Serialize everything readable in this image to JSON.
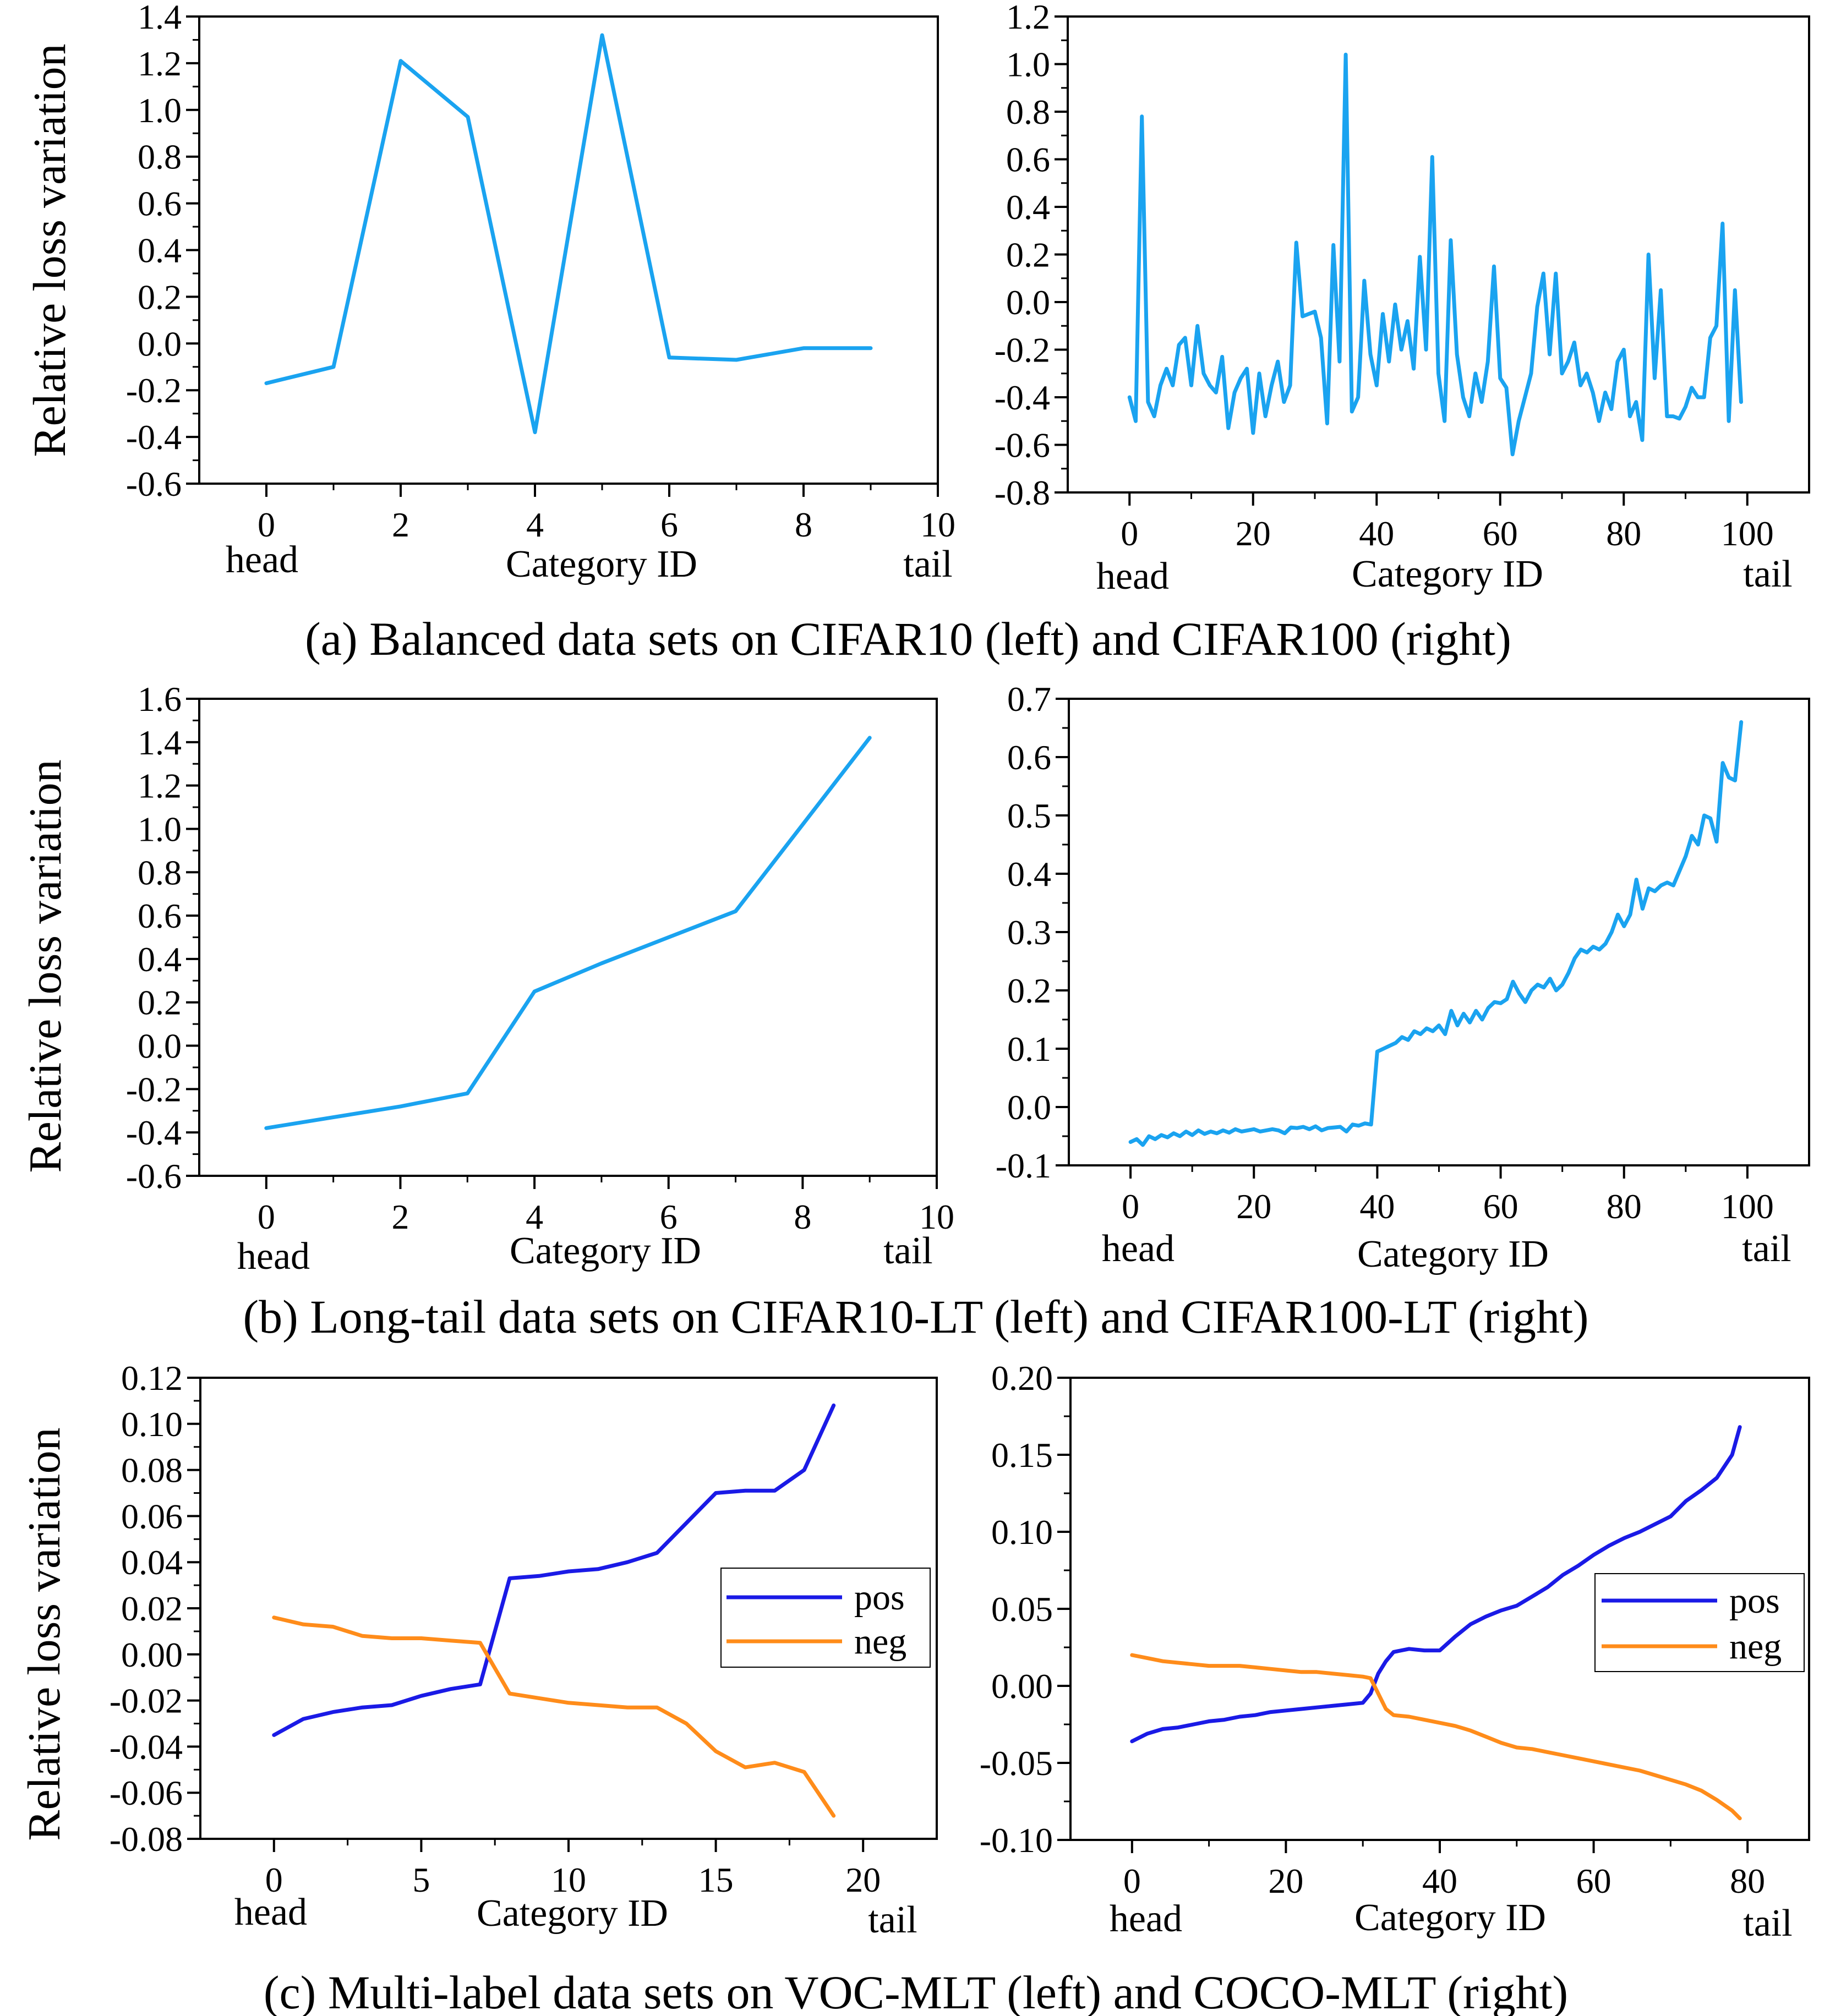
{
  "ylabel": "Relative loss variation",
  "xlabel": "Category ID",
  "head_label": "head",
  "tail_label": "tail",
  "captions": [
    "(a) Balanced data sets on CIFAR10 (left) and CIFAR100 (right)",
    "(b) Long-tail data sets on CIFAR10-LT (left) and CIFAR100-LT (right)",
    "(c) Multi-label data sets on VOC-MLT (left) and COCO-MLT (right)"
  ],
  "colors": {
    "series": "#1aa3f0",
    "pos": "#1a1ae6",
    "neg": "#ff8c1a",
    "axis": "#000000"
  },
  "chart_data": [
    {
      "id": "a-left",
      "type": "line",
      "title": "CIFAR10",
      "xlim": [
        -1,
        10
      ],
      "ylim": [
        -0.6,
        1.4
      ],
      "xticks": [
        0,
        2,
        4,
        6,
        8,
        10
      ],
      "xtick_labels": [
        "0",
        "2",
        "4",
        "6",
        "8",
        "10"
      ],
      "yticks": [
        -0.6,
        -0.4,
        -0.2,
        0.0,
        0.2,
        0.4,
        0.6,
        0.8,
        1.0,
        1.2,
        1.4
      ],
      "ytick_labels": [
        "-0.6",
        "-0.4",
        "-0.2",
        "0.0",
        "0.2",
        "0.4",
        "0.6",
        "0.8",
        "1.0",
        "1.2",
        "1.4"
      ],
      "series": [
        {
          "name": "loss",
          "color": "#1aa3f0",
          "x": [
            0,
            1,
            2,
            3,
            4,
            5,
            6,
            7,
            8,
            9
          ],
          "y": [
            -0.17,
            -0.1,
            1.21,
            0.97,
            -0.38,
            1.32,
            -0.06,
            -0.07,
            -0.02,
            -0.02
          ]
        }
      ]
    },
    {
      "id": "a-right",
      "type": "line",
      "title": "CIFAR100",
      "xlim": [
        -10,
        110
      ],
      "ylim": [
        -0.8,
        1.2
      ],
      "xticks": [
        0,
        20,
        40,
        60,
        80,
        100
      ],
      "xtick_labels": [
        "0",
        "20",
        "40",
        "60",
        "80",
        "100"
      ],
      "yticks": [
        -0.8,
        -0.6,
        -0.4,
        -0.2,
        0.0,
        0.2,
        0.4,
        0.6,
        0.8,
        1.0,
        1.2
      ],
      "ytick_labels": [
        "-0.8",
        "-0.6",
        "-0.4",
        "-0.2",
        "0.0",
        "0.2",
        "0.4",
        "0.6",
        "0.8",
        "1.0",
        "1.2"
      ],
      "series": [
        {
          "name": "loss",
          "color": "#1aa3f0",
          "x": [
            0,
            1,
            2,
            3,
            4,
            5,
            6,
            7,
            8,
            9,
            10,
            11,
            12,
            13,
            14,
            15,
            16,
            17,
            18,
            19,
            20,
            21,
            22,
            23,
            24,
            25,
            26,
            27,
            28,
            29,
            30,
            31,
            32,
            33,
            34,
            35,
            36,
            37,
            38,
            39,
            40,
            41,
            42,
            43,
            44,
            45,
            46,
            47,
            48,
            49,
            50,
            51,
            52,
            53,
            54,
            55,
            56,
            57,
            58,
            59,
            60,
            61,
            62,
            63,
            64,
            65,
            66,
            67,
            68,
            69,
            70,
            71,
            72,
            73,
            74,
            75,
            76,
            77,
            78,
            79,
            80,
            81,
            82,
            83,
            84,
            85,
            86,
            87,
            88,
            89,
            90,
            91,
            92,
            93,
            94,
            95,
            96,
            97,
            98,
            99
          ],
          "y": [
            -0.4,
            -0.5,
            0.78,
            -0.42,
            -0.48,
            -0.35,
            -0.28,
            -0.35,
            -0.18,
            -0.15,
            -0.35,
            -0.1,
            -0.3,
            -0.35,
            -0.38,
            -0.23,
            -0.53,
            -0.38,
            -0.32,
            -0.28,
            -0.55,
            -0.3,
            -0.48,
            -0.35,
            -0.25,
            -0.42,
            -0.35,
            0.25,
            -0.06,
            -0.05,
            -0.04,
            -0.15,
            -0.51,
            0.24,
            -0.25,
            1.04,
            -0.46,
            -0.4,
            0.09,
            -0.22,
            -0.35,
            -0.05,
            -0.25,
            -0.01,
            -0.2,
            -0.08,
            -0.28,
            0.19,
            -0.2,
            0.61,
            -0.3,
            -0.5,
            0.26,
            -0.22,
            -0.4,
            -0.48,
            -0.3,
            -0.42,
            -0.25,
            0.15,
            -0.32,
            -0.36,
            -0.64,
            -0.5,
            -0.4,
            -0.3,
            -0.02,
            0.12,
            -0.22,
            0.12,
            -0.3,
            -0.25,
            -0.17,
            -0.35,
            -0.3,
            -0.38,
            -0.5,
            -0.38,
            -0.45,
            -0.25,
            -0.2,
            -0.48,
            -0.42,
            -0.58,
            0.2,
            -0.32,
            0.05,
            -0.48,
            -0.48,
            -0.49,
            -0.44,
            -0.36,
            -0.4,
            -0.4,
            -0.15,
            -0.1,
            0.33,
            -0.5,
            0.05,
            -0.42
          ]
        }
      ]
    },
    {
      "id": "b-left",
      "type": "line",
      "title": "CIFAR10-LT",
      "xlim": [
        -1,
        10
      ],
      "ylim": [
        -0.6,
        1.6
      ],
      "xticks": [
        0,
        2,
        4,
        6,
        8,
        10
      ],
      "xtick_labels": [
        "0",
        "2",
        "4",
        "6",
        "8",
        "10"
      ],
      "yticks": [
        -0.6,
        -0.4,
        -0.2,
        0.0,
        0.2,
        0.4,
        0.6,
        0.8,
        1.0,
        1.2,
        1.4,
        1.6
      ],
      "ytick_labels": [
        "-0.6",
        "-0.4",
        "-0.2",
        "0.0",
        "0.2",
        "0.4",
        "0.6",
        "0.8",
        "1.0",
        "1.2",
        "1.4",
        "1.6"
      ],
      "series": [
        {
          "name": "loss",
          "color": "#1aa3f0",
          "x": [
            0,
            1,
            2,
            3,
            4,
            5,
            6,
            7,
            8,
            9
          ],
          "y": [
            -0.38,
            -0.33,
            -0.28,
            -0.22,
            0.25,
            0.38,
            0.5,
            0.62,
            1.02,
            1.42
          ]
        }
      ]
    },
    {
      "id": "b-right",
      "type": "line",
      "title": "CIFAR100-LT",
      "xlim": [
        -10,
        110
      ],
      "ylim": [
        -0.1,
        0.7
      ],
      "xticks": [
        0,
        20,
        40,
        60,
        80,
        100
      ],
      "xtick_labels": [
        "0",
        "20",
        "40",
        "60",
        "80",
        "100"
      ],
      "yticks": [
        -0.1,
        0.0,
        0.1,
        0.2,
        0.3,
        0.4,
        0.5,
        0.6,
        0.7
      ],
      "ytick_labels": [
        "-0.1",
        "0.0",
        "0.1",
        "0.2",
        "0.3",
        "0.4",
        "0.5",
        "0.6",
        "0.7"
      ],
      "series": [
        {
          "name": "loss",
          "color": "#1aa3f0",
          "x": [
            0,
            1,
            2,
            3,
            4,
            5,
            6,
            7,
            8,
            9,
            10,
            11,
            12,
            13,
            14,
            15,
            16,
            17,
            18,
            19,
            20,
            21,
            22,
            23,
            24,
            25,
            26,
            27,
            28,
            29,
            30,
            31,
            32,
            33,
            34,
            35,
            36,
            37,
            38,
            39,
            40,
            41,
            42,
            43,
            44,
            45,
            46,
            47,
            48,
            49,
            50,
            51,
            52,
            53,
            54,
            55,
            56,
            57,
            58,
            59,
            60,
            61,
            62,
            63,
            64,
            65,
            66,
            67,
            68,
            69,
            70,
            71,
            72,
            73,
            74,
            75,
            76,
            77,
            78,
            79,
            80,
            81,
            82,
            83,
            84,
            85,
            86,
            87,
            88,
            89,
            90,
            91,
            92,
            93,
            94,
            95,
            96,
            97,
            98,
            99
          ],
          "y": [
            -0.06,
            -0.055,
            -0.065,
            -0.05,
            -0.055,
            -0.048,
            -0.052,
            -0.045,
            -0.05,
            -0.042,
            -0.048,
            -0.04,
            -0.046,
            -0.042,
            -0.045,
            -0.04,
            -0.044,
            -0.038,
            -0.042,
            -0.04,
            -0.038,
            -0.042,
            -0.04,
            -0.038,
            -0.04,
            -0.045,
            -0.035,
            -0.036,
            -0.034,
            -0.038,
            -0.033,
            -0.04,
            -0.036,
            -0.035,
            -0.034,
            -0.042,
            -0.03,
            -0.032,
            -0.028,
            -0.03,
            0.095,
            0.1,
            0.105,
            0.11,
            0.12,
            0.115,
            0.13,
            0.125,
            0.135,
            0.13,
            0.14,
            0.125,
            0.165,
            0.14,
            0.16,
            0.145,
            0.165,
            0.15,
            0.17,
            0.18,
            0.178,
            0.185,
            0.215,
            0.195,
            0.18,
            0.2,
            0.21,
            0.205,
            0.22,
            0.2,
            0.21,
            0.23,
            0.255,
            0.27,
            0.265,
            0.275,
            0.27,
            0.28,
            0.3,
            0.33,
            0.31,
            0.33,
            0.39,
            0.34,
            0.375,
            0.37,
            0.38,
            0.385,
            0.38,
            0.405,
            0.43,
            0.465,
            0.45,
            0.5,
            0.495,
            0.455,
            0.59,
            0.565,
            0.56,
            0.66
          ]
        }
      ]
    },
    {
      "id": "c-left",
      "type": "line",
      "title": "VOC-MLT",
      "xlim": [
        -2.5,
        22.5
      ],
      "ylim": [
        -0.08,
        0.12
      ],
      "xticks": [
        0,
        5,
        10,
        15,
        20
      ],
      "xtick_labels": [
        "0",
        "5",
        "10",
        "15",
        "20"
      ],
      "yticks": [
        -0.08,
        -0.06,
        -0.04,
        -0.02,
        0.0,
        0.02,
        0.04,
        0.06,
        0.08,
        0.1,
        0.12
      ],
      "ytick_labels": [
        "-0.08",
        "-0.06",
        "-0.04",
        "-0.02",
        "0.00",
        "0.02",
        "0.04",
        "0.06",
        "0.08",
        "0.10",
        "0.12"
      ],
      "legend": {
        "entries": [
          "pos",
          "neg"
        ],
        "placement": "center-right"
      },
      "series": [
        {
          "name": "pos",
          "color": "#1a1ae6",
          "x": [
            0,
            1,
            2,
            3,
            4,
            5,
            6,
            7,
            8,
            9,
            10,
            11,
            12,
            13,
            14,
            15,
            16,
            17,
            18,
            19
          ],
          "y": [
            -0.035,
            -0.028,
            -0.025,
            -0.023,
            -0.022,
            -0.018,
            -0.015,
            -0.013,
            0.033,
            0.034,
            0.036,
            0.037,
            0.04,
            0.044,
            0.057,
            0.07,
            0.071,
            0.071,
            0.08,
            0.108
          ]
        },
        {
          "name": "neg",
          "color": "#ff8c1a",
          "x": [
            0,
            1,
            2,
            3,
            4,
            5,
            6,
            7,
            8,
            9,
            10,
            11,
            12,
            13,
            14,
            15,
            16,
            17,
            18,
            19
          ],
          "y": [
            0.016,
            0.013,
            0.012,
            0.008,
            0.007,
            0.007,
            0.006,
            0.005,
            -0.017,
            -0.019,
            -0.021,
            -0.022,
            -0.023,
            -0.023,
            -0.03,
            -0.042,
            -0.049,
            -0.047,
            -0.051,
            -0.07
          ]
        }
      ]
    },
    {
      "id": "c-right",
      "type": "line",
      "title": "COCO-MLT",
      "xlim": [
        -8,
        88
      ],
      "ylim": [
        -0.1,
        0.2
      ],
      "xticks": [
        0,
        20,
        40,
        60,
        80
      ],
      "xtick_labels": [
        "0",
        "20",
        "40",
        "60",
        "80"
      ],
      "yticks": [
        -0.1,
        -0.05,
        0.0,
        0.05,
        0.1,
        0.15,
        0.2
      ],
      "ytick_labels": [
        "-0.10",
        "-0.05",
        "0.00",
        "0.05",
        "0.10",
        "0.15",
        "0.20"
      ],
      "legend": {
        "entries": [
          "pos",
          "neg"
        ],
        "placement": "center-right"
      },
      "series": [
        {
          "name": "pos",
          "color": "#1a1ae6",
          "x": [
            0,
            2,
            4,
            6,
            8,
            10,
            12,
            14,
            16,
            18,
            20,
            22,
            24,
            26,
            28,
            30,
            31,
            32,
            33,
            34,
            36,
            38,
            40,
            42,
            44,
            46,
            48,
            50,
            52,
            54,
            56,
            58,
            60,
            62,
            64,
            66,
            68,
            70,
            72,
            74,
            76,
            78,
            79
          ],
          "y": [
            -0.036,
            -0.031,
            -0.028,
            -0.027,
            -0.025,
            -0.023,
            -0.022,
            -0.02,
            -0.019,
            -0.017,
            -0.016,
            -0.015,
            -0.014,
            -0.013,
            -0.012,
            -0.011,
            -0.005,
            0.008,
            0.016,
            0.022,
            0.024,
            0.023,
            0.023,
            0.032,
            0.04,
            0.045,
            0.049,
            0.052,
            0.058,
            0.064,
            0.072,
            0.078,
            0.085,
            0.091,
            0.096,
            0.1,
            0.105,
            0.11,
            0.12,
            0.127,
            0.135,
            0.15,
            0.168
          ]
        },
        {
          "name": "neg",
          "color": "#ff8c1a",
          "x": [
            0,
            2,
            4,
            6,
            8,
            10,
            12,
            14,
            16,
            18,
            20,
            22,
            24,
            26,
            28,
            30,
            31,
            32,
            33,
            34,
            36,
            38,
            40,
            42,
            44,
            46,
            48,
            50,
            52,
            54,
            56,
            58,
            60,
            62,
            64,
            66,
            68,
            70,
            72,
            74,
            76,
            78,
            79
          ],
          "y": [
            0.02,
            0.018,
            0.016,
            0.015,
            0.014,
            0.013,
            0.013,
            0.013,
            0.012,
            0.011,
            0.01,
            0.009,
            0.009,
            0.008,
            0.007,
            0.006,
            0.005,
            -0.005,
            -0.015,
            -0.019,
            -0.02,
            -0.022,
            -0.024,
            -0.026,
            -0.029,
            -0.033,
            -0.037,
            -0.04,
            -0.041,
            -0.043,
            -0.045,
            -0.047,
            -0.049,
            -0.051,
            -0.053,
            -0.055,
            -0.058,
            -0.061,
            -0.064,
            -0.068,
            -0.074,
            -0.081,
            -0.086
          ]
        }
      ]
    }
  ]
}
